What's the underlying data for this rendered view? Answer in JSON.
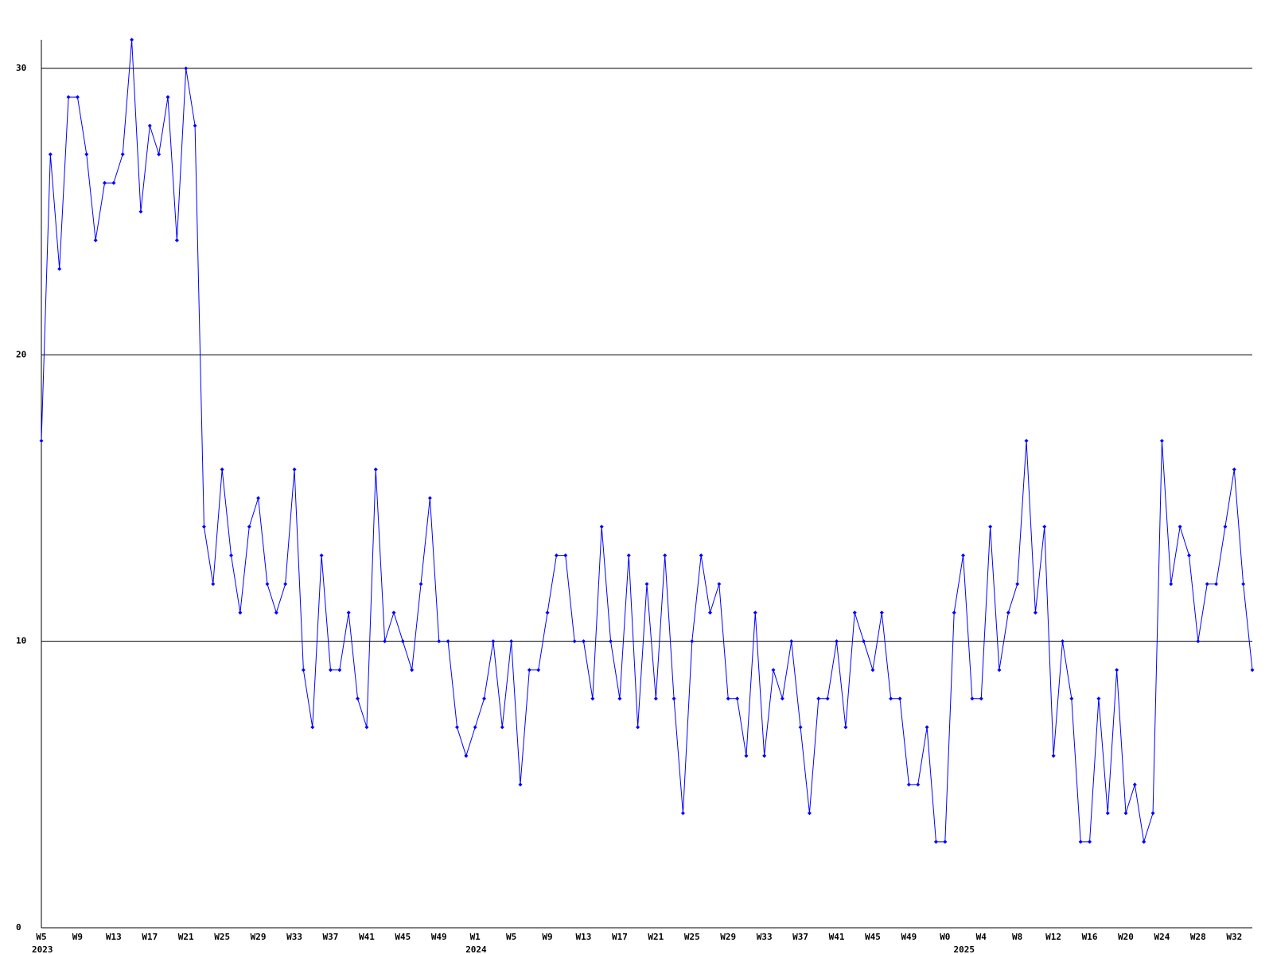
{
  "chart_data": {
    "type": "line",
    "categories": [
      "W5",
      null,
      null,
      null,
      "W9",
      null,
      null,
      null,
      "W13",
      null,
      null,
      null,
      "W17",
      null,
      null,
      null,
      "W21",
      null,
      null,
      null,
      "W25",
      null,
      null,
      null,
      "W29",
      null,
      null,
      null,
      "W33",
      null,
      null,
      null,
      "W37",
      null,
      null,
      null,
      "W41",
      null,
      null,
      null,
      "W45",
      null,
      null,
      null,
      "W49",
      null,
      null,
      null,
      "W1",
      null,
      null,
      null,
      "W5",
      null,
      null,
      null,
      "W9",
      null,
      null,
      null,
      "W13",
      null,
      null,
      null,
      "W17",
      null,
      null,
      null,
      "W21",
      null,
      null,
      null,
      "W25",
      null,
      null,
      null,
      "W29",
      null,
      null,
      null,
      "W33",
      null,
      null,
      null,
      "W37",
      null,
      null,
      null,
      "W41",
      null,
      null,
      null,
      "W45",
      null,
      null,
      null,
      "W49",
      null,
      null,
      null,
      "W0",
      null,
      null,
      null,
      "W4",
      null,
      null,
      null,
      "W8",
      null,
      null,
      null,
      "W12",
      null,
      null,
      null,
      "W16",
      null,
      null,
      null,
      "W20",
      null,
      null,
      null,
      "W24",
      null,
      null,
      null,
      "W28",
      null,
      null,
      null,
      "W32",
      null,
      null
    ],
    "year_labels": [
      "2023",
      null,
      null,
      null,
      null,
      null,
      null,
      null,
      null,
      null,
      null,
      null,
      null,
      null,
      null,
      null,
      null,
      null,
      null,
      null,
      null,
      null,
      null,
      null,
      null,
      null,
      null,
      null,
      null,
      null,
      null,
      null,
      null,
      null,
      null,
      null,
      null,
      null,
      null,
      null,
      null,
      null,
      null,
      null,
      null,
      null,
      null,
      null,
      "2024",
      null,
      null,
      null,
      null,
      null,
      null,
      null,
      null,
      null,
      null,
      null,
      null,
      null,
      null,
      null,
      null,
      null,
      null,
      null,
      null,
      null,
      null,
      null,
      null,
      null,
      null,
      null,
      null,
      null,
      null,
      null,
      null,
      null,
      null,
      null,
      null,
      null,
      null,
      null,
      null,
      null,
      null,
      null,
      null,
      null,
      null,
      null,
      null,
      null,
      null,
      null,
      null,
      null,
      "2025",
      null,
      null,
      null,
      null,
      null,
      null,
      null,
      null,
      null,
      null,
      null,
      null,
      null,
      null,
      null,
      null,
      null,
      null,
      null,
      null,
      null,
      null,
      null,
      null,
      null,
      null,
      null,
      null,
      null,
      null,
      null,
      null,
      null
    ],
    "series": [
      {
        "color": "#0000ff",
        "values": [
          17,
          27,
          23,
          29,
          29,
          27,
          24,
          26,
          26,
          27,
          31,
          25,
          28,
          27,
          29,
          24,
          30,
          28,
          14,
          12,
          16,
          13,
          11,
          14,
          15,
          12,
          11,
          12,
          16,
          9,
          7,
          13,
          9,
          9,
          11,
          8,
          7,
          16,
          10,
          11,
          10,
          9,
          12,
          15,
          10,
          10,
          7,
          6,
          7,
          8,
          10,
          7,
          10,
          5,
          9,
          9,
          11,
          13,
          13,
          10,
          10,
          8,
          14,
          10,
          8,
          13,
          7,
          12,
          8,
          13,
          8,
          4,
          10,
          13,
          11,
          12,
          8,
          8,
          6,
          11,
          6,
          9,
          8,
          10,
          7,
          4,
          8,
          8,
          10,
          7,
          11,
          10,
          9,
          11,
          8,
          8,
          5,
          5,
          7,
          3,
          3,
          11,
          13,
          8,
          8,
          14,
          9,
          11,
          12,
          17,
          11,
          14,
          6,
          10,
          8,
          3,
          3,
          8,
          4,
          9,
          4,
          5,
          3,
          4,
          17,
          12,
          14,
          13,
          10,
          12,
          12,
          14,
          16,
          12,
          9
        ]
      }
    ],
    "ylim": [
      0,
      31
    ],
    "yticks": [
      0,
      10,
      20,
      30
    ],
    "grid": true
  }
}
